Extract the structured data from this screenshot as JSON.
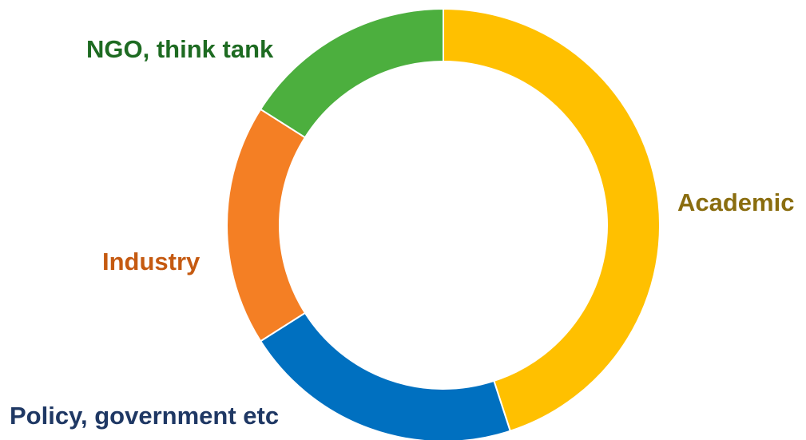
{
  "chart_data": {
    "type": "pie",
    "variant": "donut",
    "labels": [
      "Academic",
      "Policy, government etc",
      "Industry",
      "NGO, think tank"
    ],
    "values": [
      45,
      21,
      18,
      16
    ],
    "colors": [
      "#FFC000",
      "#0070C0",
      "#F47F24",
      "#4CAF3E"
    ],
    "label_colors": [
      "#8A6D0F",
      "#1F3864",
      "#C55A11",
      "#1E6B22"
    ],
    "start_angle_deg": 0,
    "direction": "clockwise",
    "legend": "none"
  }
}
